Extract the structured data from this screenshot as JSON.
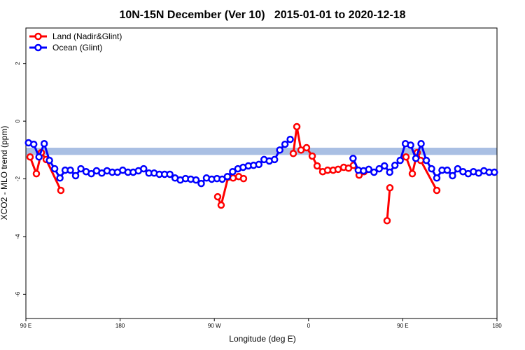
{
  "chart_data": {
    "type": "line",
    "title": "10N-15N December (Ver 10)   2015-01-01 to 2020-12-18",
    "x_label": "Longitude (deg E)",
    "y_label": "XCO2 - MLO trend (ppm)",
    "xlim": [
      90,
      540
    ],
    "xticks": [
      {
        "value": 90,
        "label": "90 E"
      },
      180,
      {
        "value": 270,
        "label": "90 W"
      },
      {
        "value": 360,
        "label": "0"
      },
      {
        "value": 450,
        "label": "90 E"
      },
      {
        "value": 540,
        "label": "180"
      }
    ],
    "ylim": [
      -6.84,
      3.23
    ],
    "yticks": [
      -6,
      -4,
      -2,
      0,
      2
    ],
    "band": {
      "ylim": [
        -1.17,
        -0.92
      ],
      "color": "#a9bfe3"
    },
    "legend": "top-left",
    "series": [
      {
        "name": "Land (Nadir&Glint)",
        "color": "#ff0000",
        "x": [
          94.0,
          100.0,
          104.7,
          109.4,
          123.4,
          null,
          273.2,
          276.5,
          283.2,
          287.9,
          293.3,
          297.9,
          null,
          345.4,
          348.8,
          352.8,
          358.1,
          363.5,
          368.2,
          373.5,
          378.2,
          383.5,
          388.2,
          393.6,
          398.2,
          402.9,
          408.3,
          413.0,
          null,
          435.0,
          437.7,
          null,
          453.1,
          459.1,
          463.8,
          467.1,
          482.5
        ],
        "values": [
          -1.24,
          -1.82,
          -1.09,
          -1.33,
          -2.4,
          null,
          -2.62,
          -2.91,
          -1.94,
          -1.97,
          -1.92,
          -1.99,
          null,
          -1.12,
          -0.19,
          -1.0,
          -0.92,
          -1.21,
          -1.55,
          -1.75,
          -1.7,
          -1.7,
          -1.67,
          -1.6,
          -1.63,
          -1.53,
          -1.87,
          -1.75,
          null,
          -3.45,
          -2.31,
          null,
          -1.24,
          -1.82,
          -1.09,
          -1.36,
          -2.4
        ]
      },
      {
        "name": "Ocean (Glint)",
        "color": "#0000ff",
        "x": [
          92.5,
          97.5,
          102.5,
          107.5,
          112.5,
          117.5,
          122.5,
          127.5,
          132.5,
          137.5,
          142.5,
          147.5,
          152.5,
          157.5,
          162.5,
          167.5,
          172.5,
          177.5,
          182.5,
          187.5,
          192.5,
          197.5,
          202.5,
          207.5,
          212.5,
          217.5,
          222.5,
          227.5,
          232.5,
          237.5,
          242.5,
          247.5,
          252.5,
          257.5,
          262.5,
          267.5,
          272.5,
          277.5,
          282.5,
          287.5,
          292.5,
          297.5,
          302.5,
          307.5,
          312.5,
          317.5,
          322.5,
          327.5,
          332.5,
          337.5,
          342.5,
          null,
          402.5,
          407.5,
          412.5,
          417.5,
          422.5,
          427.5,
          432.5,
          437.5,
          442.5,
          447.5,
          452.5,
          457.5,
          462.5,
          467.5,
          472.5,
          477.5,
          482.5,
          487.5,
          492.5,
          497.5,
          502.5,
          507.5,
          512.5,
          517.5,
          522.5,
          527.5,
          532.5,
          537.5
        ],
        "values": [
          -0.75,
          -0.8,
          -1.24,
          -0.78,
          -1.36,
          -1.65,
          -1.97,
          -1.7,
          -1.7,
          -1.89,
          -1.65,
          -1.75,
          -1.82,
          -1.72,
          -1.8,
          -1.72,
          -1.77,
          -1.77,
          -1.7,
          -1.77,
          -1.77,
          -1.72,
          -1.65,
          -1.8,
          -1.8,
          -1.84,
          -1.84,
          -1.84,
          -1.97,
          -2.04,
          -1.99,
          -2.01,
          -2.04,
          -2.16,
          -1.97,
          -2.01,
          -1.99,
          -2.01,
          -1.92,
          -1.75,
          -1.65,
          -1.6,
          -1.55,
          -1.53,
          -1.5,
          -1.33,
          -1.38,
          -1.33,
          -1.0,
          -0.8,
          -0.63,
          null,
          -1.29,
          -1.7,
          -1.72,
          -1.67,
          -1.77,
          -1.65,
          -1.55,
          -1.77,
          -1.53,
          -1.36,
          -0.78,
          -0.83,
          -1.29,
          -0.78,
          -1.36,
          -1.65,
          -1.97,
          -1.7,
          -1.7,
          -1.89,
          -1.65,
          -1.75,
          -1.82,
          -1.75,
          -1.8,
          -1.72,
          -1.77,
          -1.77
        ]
      }
    ]
  }
}
